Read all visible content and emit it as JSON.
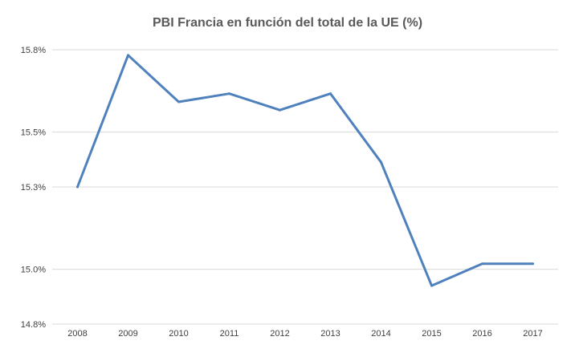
{
  "chart_data": {
    "type": "line",
    "title": "PBI Francia en función del total de la UE (%)",
    "xlabel": "",
    "ylabel": "",
    "categories": [
      "2008",
      "2009",
      "2010",
      "2011",
      "2012",
      "2013",
      "2014",
      "2015",
      "2016",
      "2017"
    ],
    "series": [
      {
        "values": [
          15.3,
          15.78,
          15.61,
          15.64,
          15.58,
          15.64,
          15.39,
          14.94,
          15.02,
          15.02
        ],
        "color": "#4f81bd"
      }
    ],
    "ylim": [
      14.8,
      15.8
    ],
    "yticks": [
      14.8,
      15.0,
      15.3,
      15.5,
      15.8
    ],
    "ytick_labels": [
      "14.8%",
      "15.0%",
      "15.3%",
      "15.5%",
      "15.8%"
    ],
    "grid": true,
    "legend": "none"
  }
}
